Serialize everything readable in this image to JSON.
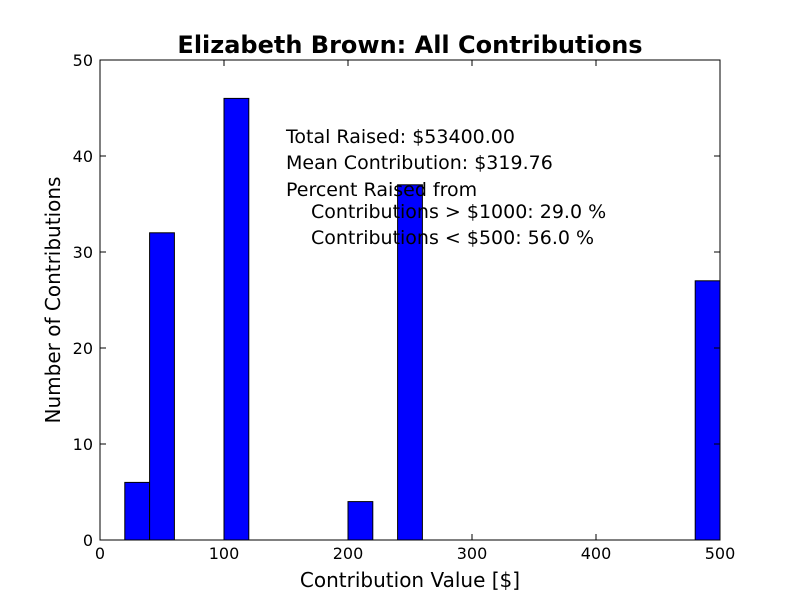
{
  "chart_data": {
    "type": "bar",
    "title": "Elizabeth Brown: All Contributions",
    "xlabel": "Contribution Value [$]",
    "ylabel": "Number of Contributions",
    "xlim": [
      0,
      500
    ],
    "ylim": [
      0,
      50
    ],
    "xticks": [
      0,
      100,
      200,
      300,
      400,
      500
    ],
    "yticks": [
      0,
      10,
      20,
      30,
      40,
      50
    ],
    "grid": false,
    "bar_color": "#0000ff",
    "bars": [
      {
        "x0": 20,
        "x1": 40,
        "value": 6
      },
      {
        "x0": 40,
        "x1": 60,
        "value": 32
      },
      {
        "x0": 100,
        "x1": 120,
        "value": 46
      },
      {
        "x0": 200,
        "x1": 220,
        "value": 4
      },
      {
        "x0": 240,
        "x1": 260,
        "value": 37
      },
      {
        "x0": 480,
        "x1": 500,
        "value": 27
      }
    ],
    "annotations": [
      "Total Raised: $53400.00",
      "Mean Contribution: $319.76",
      "Percent Raised from",
      "Contributions > $1000: 29.0 %",
      "Contributions < $500: 56.0 %"
    ]
  }
}
